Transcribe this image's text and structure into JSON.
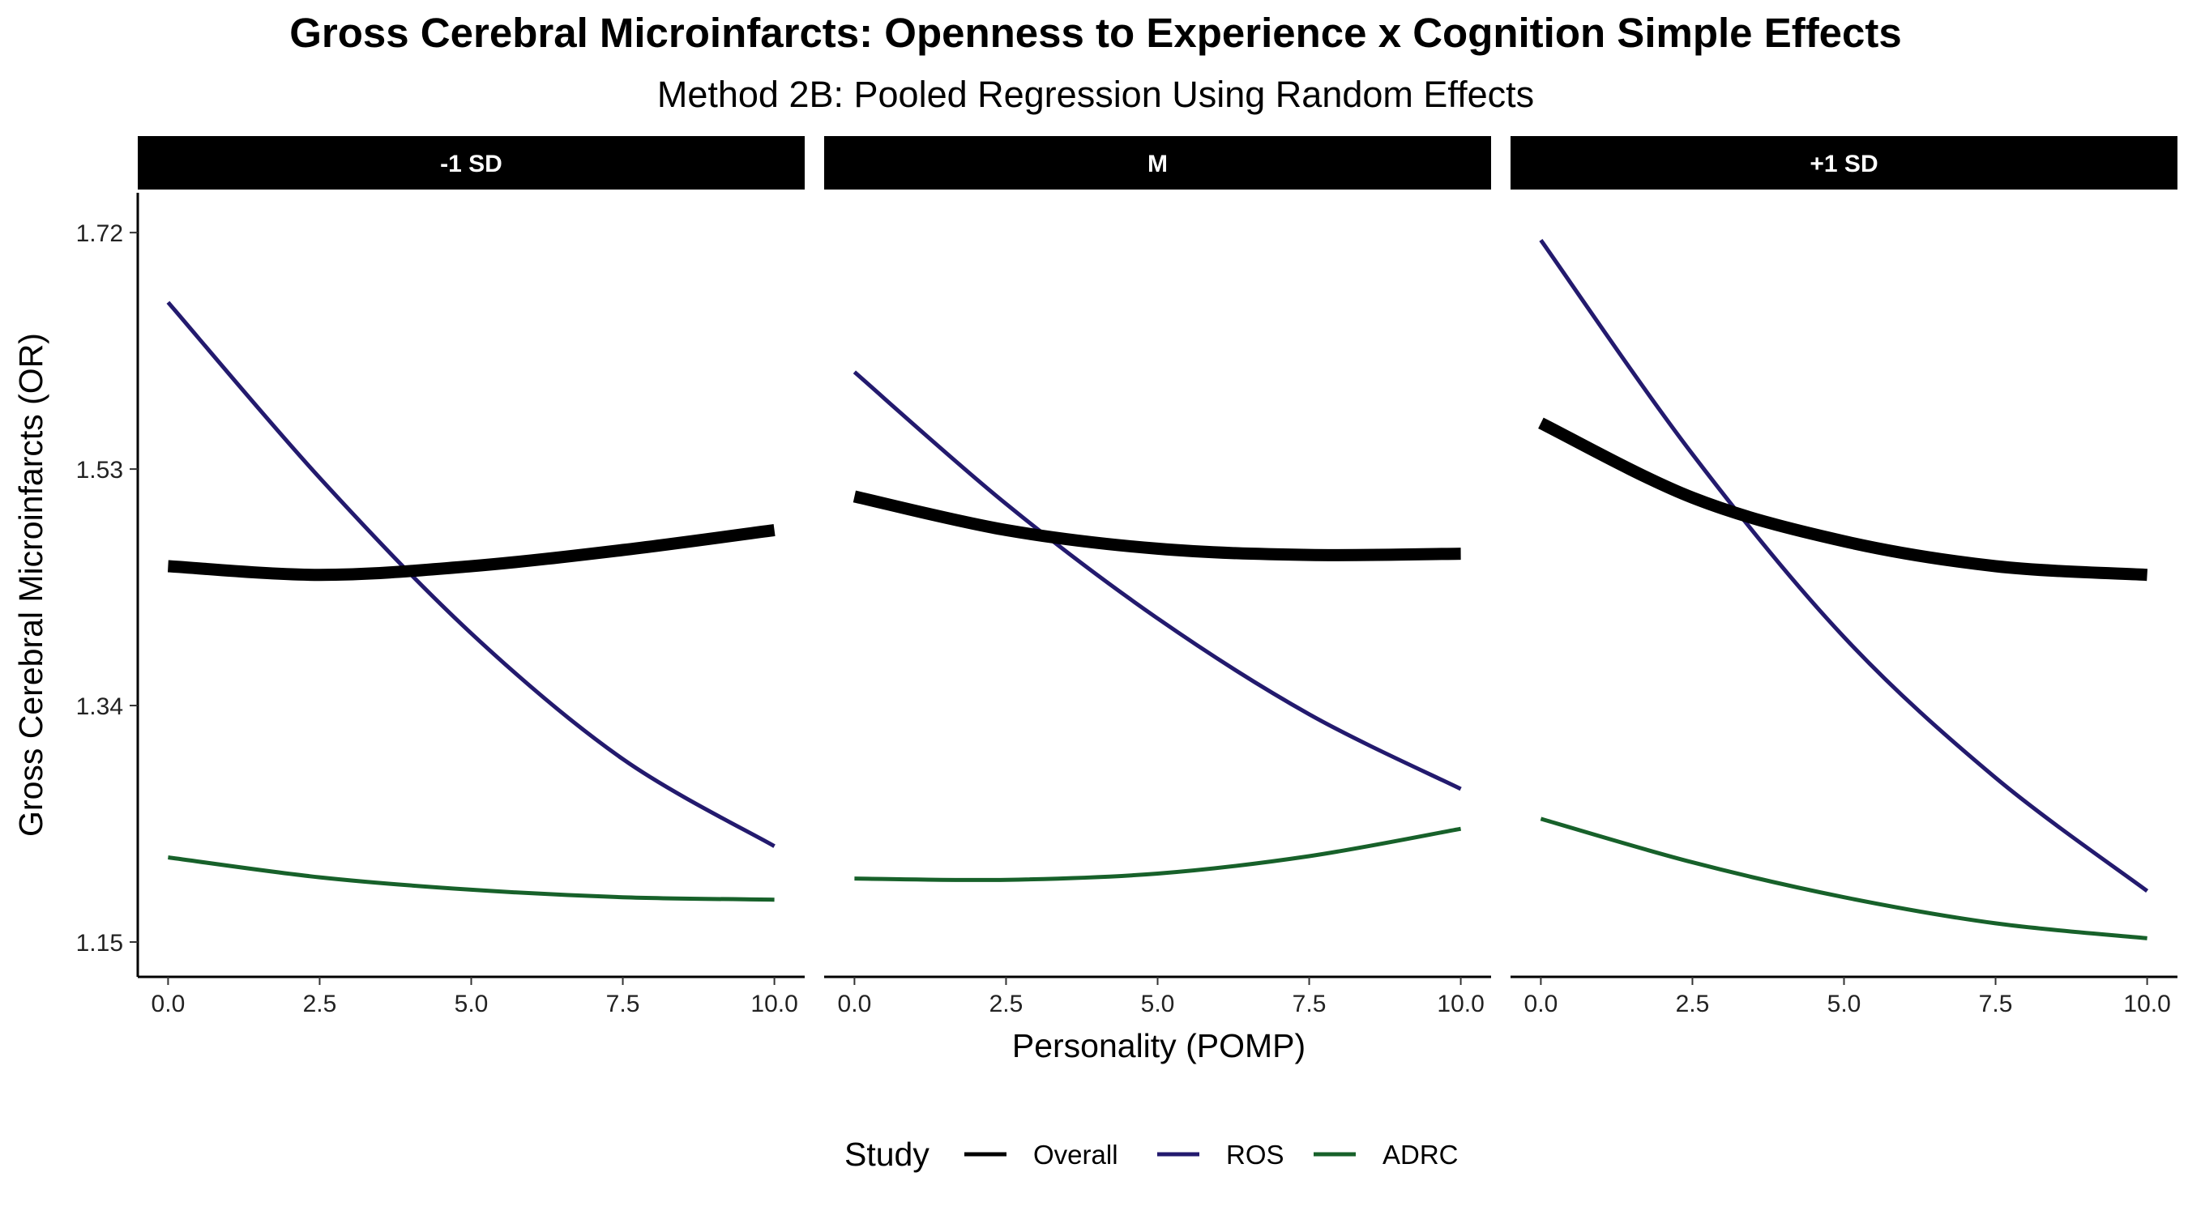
{
  "chart_data": {
    "type": "line",
    "title": "Gross Cerebral Microinfarcts: Openness to Experience x Cognition Simple Effects",
    "subtitle": "Method 2B: Pooled Regression Using Random Effects",
    "xlabel": "Personality (POMP)",
    "ylabel": "Gross Cerebral Microinfarcts (OR)",
    "xlim": [
      -0.5,
      10.5
    ],
    "ylim": [
      1.122,
      1.752
    ],
    "x_ticks": [
      0,
      2.5,
      5,
      7.5,
      10
    ],
    "x_tick_labels": [
      "0.0",
      "2.5",
      "5.0",
      "7.5",
      "10.0"
    ],
    "y_ticks": [
      1.15,
      1.34,
      1.53,
      1.72
    ],
    "y_tick_labels": [
      "1.15",
      "1.34",
      "1.53",
      "1.72"
    ],
    "grid": false,
    "legend": {
      "title": "Study",
      "position": "bottom",
      "entries": [
        {
          "name": "Overall",
          "color": "#000000"
        },
        {
          "name": "ROS",
          "color": "#231A6E"
        },
        {
          "name": "ADRC",
          "color": "#17612A"
        }
      ]
    },
    "x": [
      0,
      2.5,
      5,
      7.5,
      10
    ],
    "panels": [
      {
        "label": "-1 SD",
        "series": [
          {
            "name": "Overall",
            "values": [
              1.452,
              1.445,
              1.452,
              1.465,
              1.481
            ]
          },
          {
            "name": "ROS",
            "values": [
              1.664,
              1.523,
              1.398,
              1.297,
              1.227
            ]
          },
          {
            "name": "ADRC",
            "values": [
              1.218,
              1.202,
              1.192,
              1.186,
              1.184
            ]
          }
        ]
      },
      {
        "label": "M",
        "series": [
          {
            "name": "Overall",
            "values": [
              1.508,
              1.481,
              1.466,
              1.461,
              1.462
            ]
          },
          {
            "name": "ROS",
            "values": [
              1.608,
              1.502,
              1.41,
              1.333,
              1.273
            ]
          },
          {
            "name": "ADRC",
            "values": [
              1.201,
              1.2,
              1.205,
              1.219,
              1.241
            ]
          }
        ]
      },
      {
        "label": "+1 SD",
        "series": [
          {
            "name": "Overall",
            "values": [
              1.567,
              1.507,
              1.472,
              1.452,
              1.445
            ]
          },
          {
            "name": "ROS",
            "values": [
              1.714,
              1.542,
              1.395,
              1.282,
              1.191
            ]
          },
          {
            "name": "ADRC",
            "values": [
              1.249,
              1.214,
              1.186,
              1.165,
              1.153
            ]
          }
        ]
      }
    ]
  }
}
